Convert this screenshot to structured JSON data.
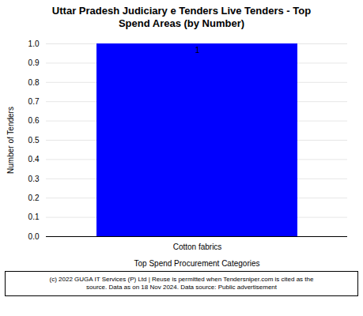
{
  "chart_data": {
    "type": "bar",
    "title": "Uttar Pradesh Judiciary e Tenders Live Tenders - Top\nSpend Areas (by Number)",
    "categories": [
      "Cotton fabrics"
    ],
    "values": [
      1
    ],
    "color": "#0000FF",
    "xlabel": "Top Spend Procurement Categories",
    "ylabel": "Number of Tenders",
    "ylim": [
      0,
      1.0
    ],
    "yticks": [
      {
        "value": 0,
        "label": "0.0"
      },
      0.1,
      0.2,
      0.3,
      0.4,
      0.5,
      0.6,
      0.7,
      0.8,
      0.9,
      {
        "value": 1,
        "label": "1.0"
      }
    ],
    "grid": true,
    "data_labels": true,
    "footnote": "(c) 2022 GUGA IT Services (P) Ltd | Reuse is permitted when Tendersniper.com is cited as the\nsource. Data as on 18 Nov 2024. Data source: Public advertisement"
  }
}
